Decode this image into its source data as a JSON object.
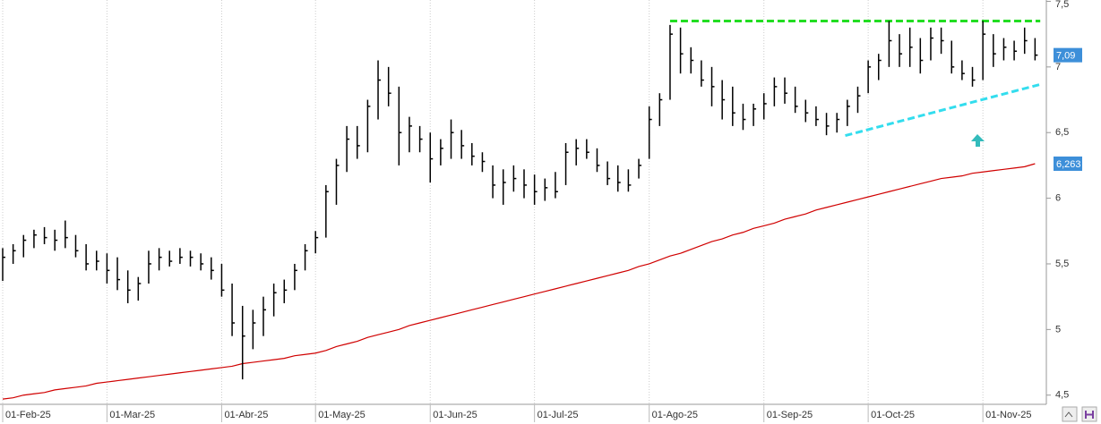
{
  "chart_data": {
    "type": "hlc",
    "color": "#000000",
    "categories": [
      "01-Feb-25",
      null,
      null,
      null,
      null,
      null,
      null,
      null,
      null,
      null,
      "01-Mar-25",
      null,
      null,
      null,
      null,
      null,
      null,
      null,
      null,
      null,
      null,
      "01-Abr-25",
      null,
      null,
      null,
      null,
      null,
      null,
      null,
      null,
      "01-May-25",
      null,
      null,
      null,
      null,
      null,
      null,
      null,
      null,
      null,
      null,
      "01-Jun-25",
      null,
      null,
      null,
      null,
      null,
      null,
      null,
      null,
      null,
      "01-Jul-25",
      null,
      null,
      null,
      null,
      null,
      null,
      null,
      null,
      null,
      null,
      "01-Ago-25",
      null,
      null,
      null,
      null,
      null,
      null,
      null,
      null,
      null,
      null,
      "01-Sep-25",
      null,
      null,
      null,
      null,
      null,
      null,
      null,
      null,
      null,
      "01-Oct-25",
      null,
      null,
      null,
      null,
      null,
      null,
      null,
      null,
      null,
      null,
      "01-Nov-25",
      null,
      null,
      null,
      null,
      null
    ],
    "low": [
      5.37,
      5.5,
      5.55,
      5.62,
      5.65,
      5.6,
      5.62,
      5.55,
      5.45,
      5.45,
      5.35,
      5.3,
      5.2,
      5.22,
      5.35,
      5.45,
      5.48,
      5.5,
      5.48,
      5.45,
      5.38,
      5.25,
      4.95,
      4.62,
      4.85,
      4.95,
      5.1,
      5.2,
      5.3,
      5.45,
      5.58,
      5.7,
      5.95,
      6.2,
      6.3,
      6.35,
      6.6,
      6.7,
      6.25,
      6.35,
      6.35,
      6.12,
      6.25,
      6.3,
      6.3,
      6.25,
      6.2,
      6.0,
      5.95,
      6.05,
      6.0,
      5.95,
      5.98,
      6.0,
      6.1,
      6.25,
      6.3,
      6.2,
      6.1,
      6.05,
      6.05,
      6.15,
      6.3,
      6.55,
      6.75,
      6.95,
      6.95,
      6.85,
      6.7,
      6.6,
      6.55,
      6.52,
      6.55,
      6.6,
      6.7,
      6.72,
      6.65,
      6.58,
      6.55,
      6.48,
      6.5,
      6.55,
      6.65,
      6.8,
      6.9,
      7.0,
      7.0,
      7.0,
      6.95,
      7.05,
      7.1,
      6.95,
      6.9,
      6.85,
      6.9,
      7.0,
      7.05,
      7.05,
      7.1,
      7.05
    ],
    "high": [
      5.62,
      5.65,
      5.72,
      5.76,
      5.78,
      5.76,
      5.83,
      5.72,
      5.65,
      5.6,
      5.58,
      5.55,
      5.45,
      5.4,
      5.6,
      5.62,
      5.6,
      5.62,
      5.6,
      5.58,
      5.55,
      5.5,
      5.35,
      5.18,
      5.15,
      5.25,
      5.35,
      5.38,
      5.5,
      5.65,
      5.75,
      6.1,
      6.3,
      6.55,
      6.55,
      6.75,
      7.05,
      7.0,
      6.85,
      6.62,
      6.55,
      6.5,
      6.45,
      6.6,
      6.52,
      6.42,
      6.35,
      6.25,
      6.22,
      6.25,
      6.22,
      6.18,
      6.15,
      6.2,
      6.42,
      6.45,
      6.45,
      6.38,
      6.28,
      6.25,
      6.22,
      6.3,
      6.7,
      6.8,
      7.32,
      7.3,
      7.15,
      7.05,
      7.0,
      6.9,
      6.85,
      6.72,
      6.72,
      6.8,
      6.92,
      6.92,
      6.85,
      6.75,
      6.7,
      6.65,
      6.65,
      6.75,
      6.85,
      7.05,
      7.1,
      7.35,
      7.25,
      7.3,
      7.22,
      7.3,
      7.3,
      7.2,
      7.05,
      7.0,
      7.35,
      7.25,
      7.22,
      7.2,
      7.3,
      7.22
    ],
    "close": [
      5.55,
      5.6,
      5.68,
      5.72,
      5.7,
      5.68,
      5.7,
      5.6,
      5.5,
      5.52,
      5.45,
      5.38,
      5.3,
      5.35,
      5.5,
      5.55,
      5.52,
      5.55,
      5.55,
      5.5,
      5.45,
      5.3,
      5.05,
      4.95,
      5.05,
      5.15,
      5.28,
      5.3,
      5.45,
      5.6,
      5.7,
      6.05,
      6.25,
      6.45,
      6.4,
      6.7,
      6.9,
      6.8,
      6.5,
      6.55,
      6.45,
      6.3,
      6.38,
      6.5,
      6.4,
      6.32,
      6.28,
      6.1,
      6.12,
      6.15,
      6.1,
      6.05,
      6.08,
      6.05,
      6.35,
      6.38,
      6.35,
      6.25,
      6.15,
      6.12,
      6.1,
      6.25,
      6.6,
      6.75,
      7.25,
      7.1,
      7.05,
      6.9,
      6.85,
      6.75,
      6.65,
      6.6,
      6.68,
      6.72,
      6.85,
      6.8,
      6.7,
      6.65,
      6.6,
      6.55,
      6.6,
      6.7,
      6.78,
      7.0,
      7.05,
      7.2,
      7.1,
      7.15,
      7.05,
      7.22,
      7.2,
      7.0,
      6.95,
      6.9,
      7.25,
      7.1,
      7.15,
      7.12,
      7.2,
      7.09
    ],
    "moving_average": {
      "color": "#d00000",
      "values": [
        4.47,
        4.48,
        4.5,
        4.51,
        4.52,
        4.54,
        4.55,
        4.56,
        4.57,
        4.59,
        4.6,
        4.61,
        4.62,
        4.63,
        4.64,
        4.65,
        4.66,
        4.67,
        4.68,
        4.69,
        4.7,
        4.71,
        4.72,
        4.74,
        4.75,
        4.76,
        4.77,
        4.78,
        4.8,
        4.81,
        4.82,
        4.84,
        4.87,
        4.89,
        4.91,
        4.94,
        4.96,
        4.98,
        5.0,
        5.03,
        5.05,
        5.07,
        5.09,
        5.11,
        5.13,
        5.15,
        5.17,
        5.19,
        5.21,
        5.23,
        5.25,
        5.27,
        5.29,
        5.31,
        5.33,
        5.35,
        5.37,
        5.39,
        5.41,
        5.43,
        5.45,
        5.48,
        5.5,
        5.53,
        5.56,
        5.58,
        5.61,
        5.64,
        5.67,
        5.69,
        5.72,
        5.74,
        5.77,
        5.79,
        5.81,
        5.84,
        5.86,
        5.88,
        5.91,
        5.93,
        5.95,
        5.97,
        5.99,
        6.01,
        6.03,
        6.05,
        6.07,
        6.09,
        6.11,
        6.13,
        6.15,
        6.16,
        6.17,
        6.19,
        6.2,
        6.21,
        6.22,
        6.23,
        6.24,
        6.263
      ]
    },
    "price_tags": [
      {
        "value": 7.09,
        "label": "7,09",
        "color": "#3d8fd9"
      },
      {
        "value": 6.263,
        "label": "6,263",
        "color": "#3d8fd9"
      }
    ],
    "trendlines": [
      {
        "color": "#22dd22",
        "x": [
          64,
          99.5
        ],
        "y": [
          7.35,
          7.35
        ]
      },
      {
        "color": "#33ddee",
        "x": [
          80.8,
          99.4
        ],
        "y": [
          6.477,
          6.865
        ]
      }
    ],
    "ylim": [
      4.43,
      7.51
    ],
    "yticks": [
      {
        "value": 4.5,
        "label": "4,5"
      },
      5,
      {
        "value": 5.5,
        "label": "5,5"
      },
      6,
      {
        "value": 6.5,
        "label": "6,5"
      },
      7,
      {
        "value": 7.5,
        "label": "7,5"
      }
    ],
    "grid": true
  }
}
